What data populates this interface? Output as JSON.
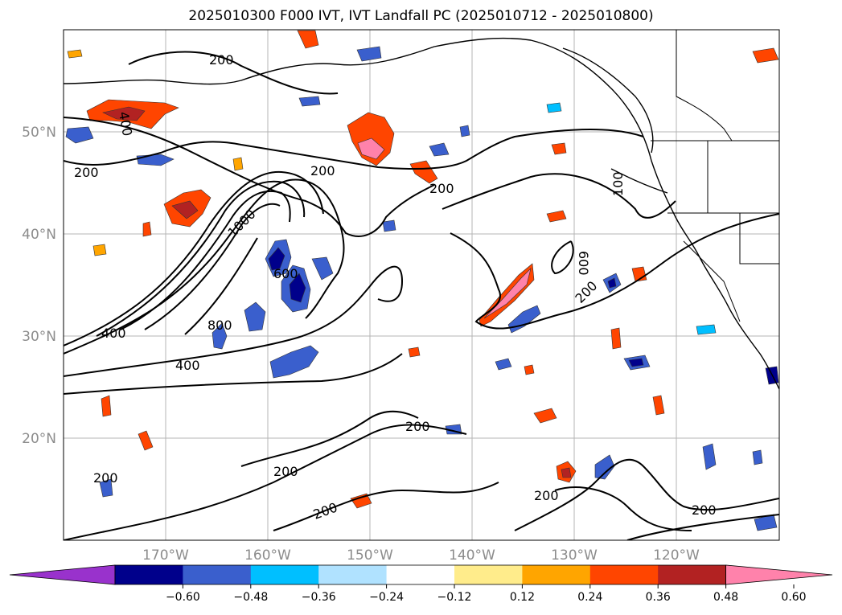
{
  "title": "2025010300 F000 IVT, IVT Landfall PC (2025010712 - 2025010800)",
  "map": {
    "lon_range": [
      -180,
      -110
    ],
    "lat_range": [
      10,
      60
    ],
    "lat_ticks": [
      {
        "value": 50,
        "label": "50°N"
      },
      {
        "value": 40,
        "label": "40°N"
      },
      {
        "value": 30,
        "label": "30°N"
      },
      {
        "value": 20,
        "label": "20°N"
      }
    ],
    "lon_ticks": [
      {
        "value": -170,
        "label": "170°W"
      },
      {
        "value": -160,
        "label": "160°W"
      },
      {
        "value": -150,
        "label": "150°W"
      },
      {
        "value": -140,
        "label": "140°W"
      },
      {
        "value": -130,
        "label": "130°W"
      },
      {
        "value": -120,
        "label": "120°W"
      }
    ],
    "grid": true,
    "contour_labels": [
      "200",
      "400",
      "600",
      "800",
      "1000",
      "100"
    ]
  },
  "colorbar": {
    "ticks": [
      "−0.60",
      "−0.48",
      "−0.36",
      "−0.24",
      "−0.12",
      "0.12",
      "0.24",
      "0.36",
      "0.48",
      "0.60"
    ],
    "colors": [
      "#9932cc",
      "#00008b",
      "#3a5fcd",
      "#00bfff",
      "#b0e2ff",
      "#ffffff",
      "#ffec8b",
      "#ffa500",
      "#ff4500",
      "#b22222",
      "#ff82ab"
    ]
  }
}
